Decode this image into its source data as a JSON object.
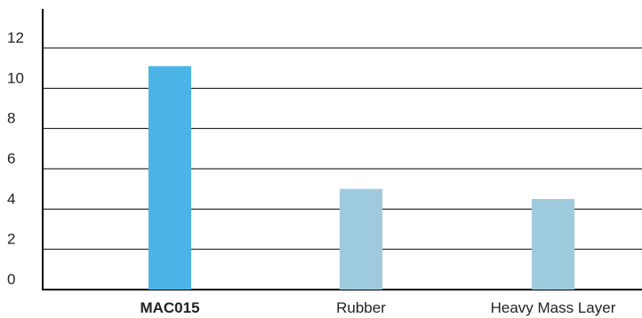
{
  "chart_data": {
    "type": "bar",
    "categories": [
      "MAC015",
      "Rubber",
      "Heavy Mass Layer"
    ],
    "values": [
      11.1,
      5.0,
      4.5
    ],
    "highlight_category": "MAC015",
    "colors": {
      "highlight": "#4bb4e6",
      "default": "#9dcbdd"
    },
    "yticks": [
      0,
      2,
      4,
      6,
      8,
      10,
      12
    ],
    "ylim": [
      0,
      12
    ],
    "grid": true
  }
}
